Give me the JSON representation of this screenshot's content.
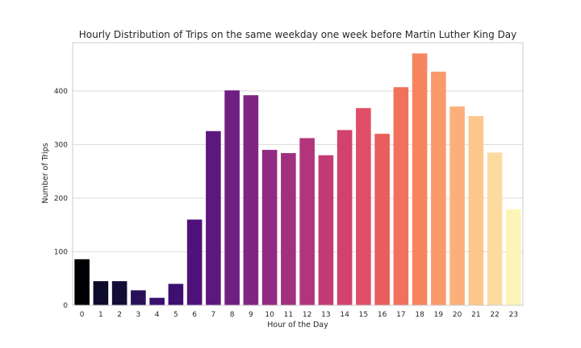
{
  "chart_data": {
    "type": "bar",
    "title": "Hourly Distribution of Trips on the same weekday one week before Martin Luther King Day",
    "xlabel": "Hour of the Day",
    "ylabel": "Number of Trips",
    "categories": [
      "0",
      "1",
      "2",
      "3",
      "4",
      "5",
      "6",
      "7",
      "8",
      "9",
      "10",
      "11",
      "12",
      "13",
      "14",
      "15",
      "16",
      "17",
      "18",
      "19",
      "20",
      "21",
      "22",
      "23"
    ],
    "values": [
      86,
      45,
      45,
      28,
      14,
      40,
      160,
      325,
      401,
      392,
      290,
      284,
      312,
      280,
      327,
      368,
      320,
      407,
      470,
      436,
      371,
      353,
      285,
      179
    ],
    "ylim": [
      0,
      490
    ],
    "yticks": [
      0,
      100,
      200,
      300,
      400
    ],
    "grid": true,
    "colors": [
      "#000004",
      "#0f0b2c",
      "#140e36",
      "#29115a",
      "#3b0f70",
      "#3d0f71",
      "#4f127b",
      "#5e177f",
      "#6f1f81",
      "#802582",
      "#912b81",
      "#a1307e",
      "#b2357b",
      "#c23b75",
      "#d1426f",
      "#e04f67",
      "#e95e5d",
      "#f1715c",
      "#f6855f",
      "#f99a6b",
      "#fbb079",
      "#fcc68c",
      "#fddba0",
      "#fcf5b7"
    ]
  }
}
